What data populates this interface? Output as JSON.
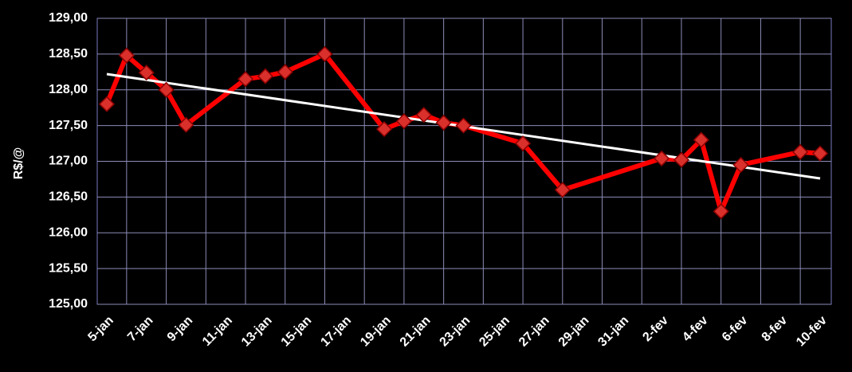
{
  "chart_data": {
    "type": "line",
    "y_label": "R$/@",
    "x": [
      "5-jan",
      "6-jan",
      "7-jan",
      "8-jan",
      "9-jan",
      "12-jan",
      "13-jan",
      "14-jan",
      "16-jan",
      "19-jan",
      "20-jan",
      "21-jan",
      "22-jan",
      "23-jan",
      "26-jan",
      "28-jan",
      "2-fev",
      "3-fev",
      "4-fev",
      "5-fev",
      "6-fev",
      "9-fev",
      "10-fev"
    ],
    "values": [
      127.8,
      128.48,
      128.24,
      128.0,
      127.51,
      128.15,
      128.19,
      128.25,
      128.5,
      127.45,
      127.56,
      127.65,
      127.54,
      127.5,
      127.25,
      126.6,
      127.04,
      127.02,
      127.3,
      126.3,
      126.95,
      127.13,
      127.11
    ],
    "color": "#ff0000",
    "trendline": {
      "x": [
        "5-jan",
        "10-fev"
      ],
      "values": [
        128.22,
        126.76
      ],
      "color": "#ffffff"
    },
    "xticks": [
      "5-jan",
      "7-jan",
      "9-jan",
      "11-jan",
      "13-jan",
      "15-jan",
      "17-jan",
      "19-jan",
      "21-jan",
      "23-jan",
      "25-jan",
      "27-jan",
      "29-jan",
      "31-jan",
      "2-fev",
      "4-fev",
      "6-fev",
      "8-fev",
      "10-fev"
    ],
    "ylim": [
      125,
      129
    ],
    "yticks": [
      {
        "value": 125,
        "label": "125,00"
      },
      {
        "value": 125.5,
        "label": "125,50"
      },
      {
        "value": 126,
        "label": "126,00"
      },
      {
        "value": 126.5,
        "label": "126,50"
      },
      {
        "value": 127,
        "label": "127,00"
      },
      {
        "value": 127.5,
        "label": "127,50"
      },
      {
        "value": 128,
        "label": "128,00"
      },
      {
        "value": 128.5,
        "label": "128,50"
      },
      {
        "value": 129,
        "label": "129,00"
      }
    ],
    "grid": true
  }
}
